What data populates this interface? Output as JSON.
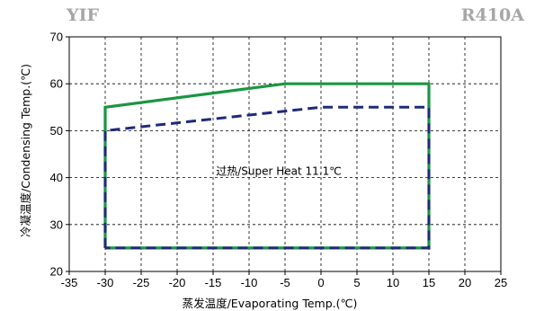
{
  "header": {
    "model": "YIF",
    "refrigerant": "R410A"
  },
  "chart_data": {
    "type": "line",
    "title": "",
    "xlabel": "蒸发温度/Evaporating Temp.(℃)",
    "ylabel": "冷凝温度/Condensing Temp.(℃)",
    "xlim": [
      -35,
      25
    ],
    "ylim": [
      20,
      70
    ],
    "x_ticks": [
      -35,
      -30,
      -25,
      -20,
      -15,
      -10,
      -5,
      0,
      5,
      10,
      15,
      20,
      25
    ],
    "y_ticks": [
      20,
      30,
      40,
      50,
      60,
      70
    ],
    "grid": true,
    "grid_style": "dashed",
    "annotation": "过热/Super Heat 11.1℃",
    "series": [
      {
        "style": "solid",
        "color": "#1a9641",
        "points": [
          [
            -30,
            25
          ],
          [
            -30,
            55
          ],
          [
            -5,
            60
          ],
          [
            15,
            60
          ],
          [
            15,
            25
          ],
          [
            -30,
            25
          ]
        ]
      },
      {
        "style": "dashed",
        "color": "#1f2a7a",
        "points": [
          [
            -30,
            25
          ],
          [
            -30,
            50
          ],
          [
            0,
            55
          ],
          [
            15,
            55
          ],
          [
            15,
            25
          ],
          [
            -30,
            25
          ]
        ]
      }
    ]
  }
}
